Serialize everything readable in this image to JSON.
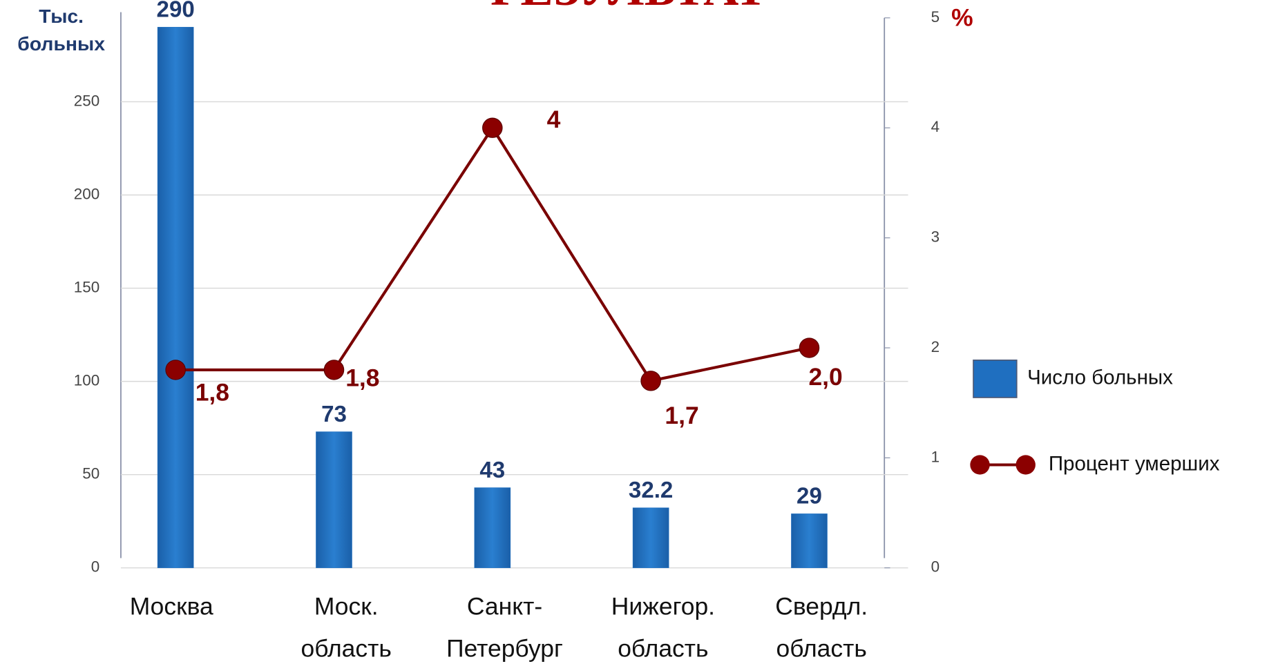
{
  "chart_data": {
    "type": "bar",
    "title": "РЕЗУЛЬТАТ",
    "y_label": "Тыс. больных",
    "y2_label": "%",
    "categories": [
      "Москва",
      "Моск.\nобласть",
      "Санкт-\nПетербург",
      "Нижегор.\nобласть",
      "Свердл.\nобласть"
    ],
    "ylim": [
      0,
      295
    ],
    "yticks": [
      0,
      50,
      100,
      150,
      200,
      250
    ],
    "y2lim": [
      0,
      5
    ],
    "y2ticks": [
      0,
      1,
      2,
      3,
      4,
      5
    ],
    "grid": true,
    "legend": "right",
    "series": [
      {
        "name": "Число больных",
        "type": "bar",
        "color": "#1f6fc0",
        "values": [
          290,
          73,
          43,
          32.2,
          29
        ]
      },
      {
        "name": "Процент умерших",
        "type": "line",
        "axis": "y2",
        "color": "#7a0000",
        "values": [
          1.8,
          1.8,
          4,
          1.7,
          2.0
        ],
        "value_labels": [
          "1,8",
          "1,8",
          "4",
          "1,7",
          "2,0"
        ]
      }
    ]
  }
}
